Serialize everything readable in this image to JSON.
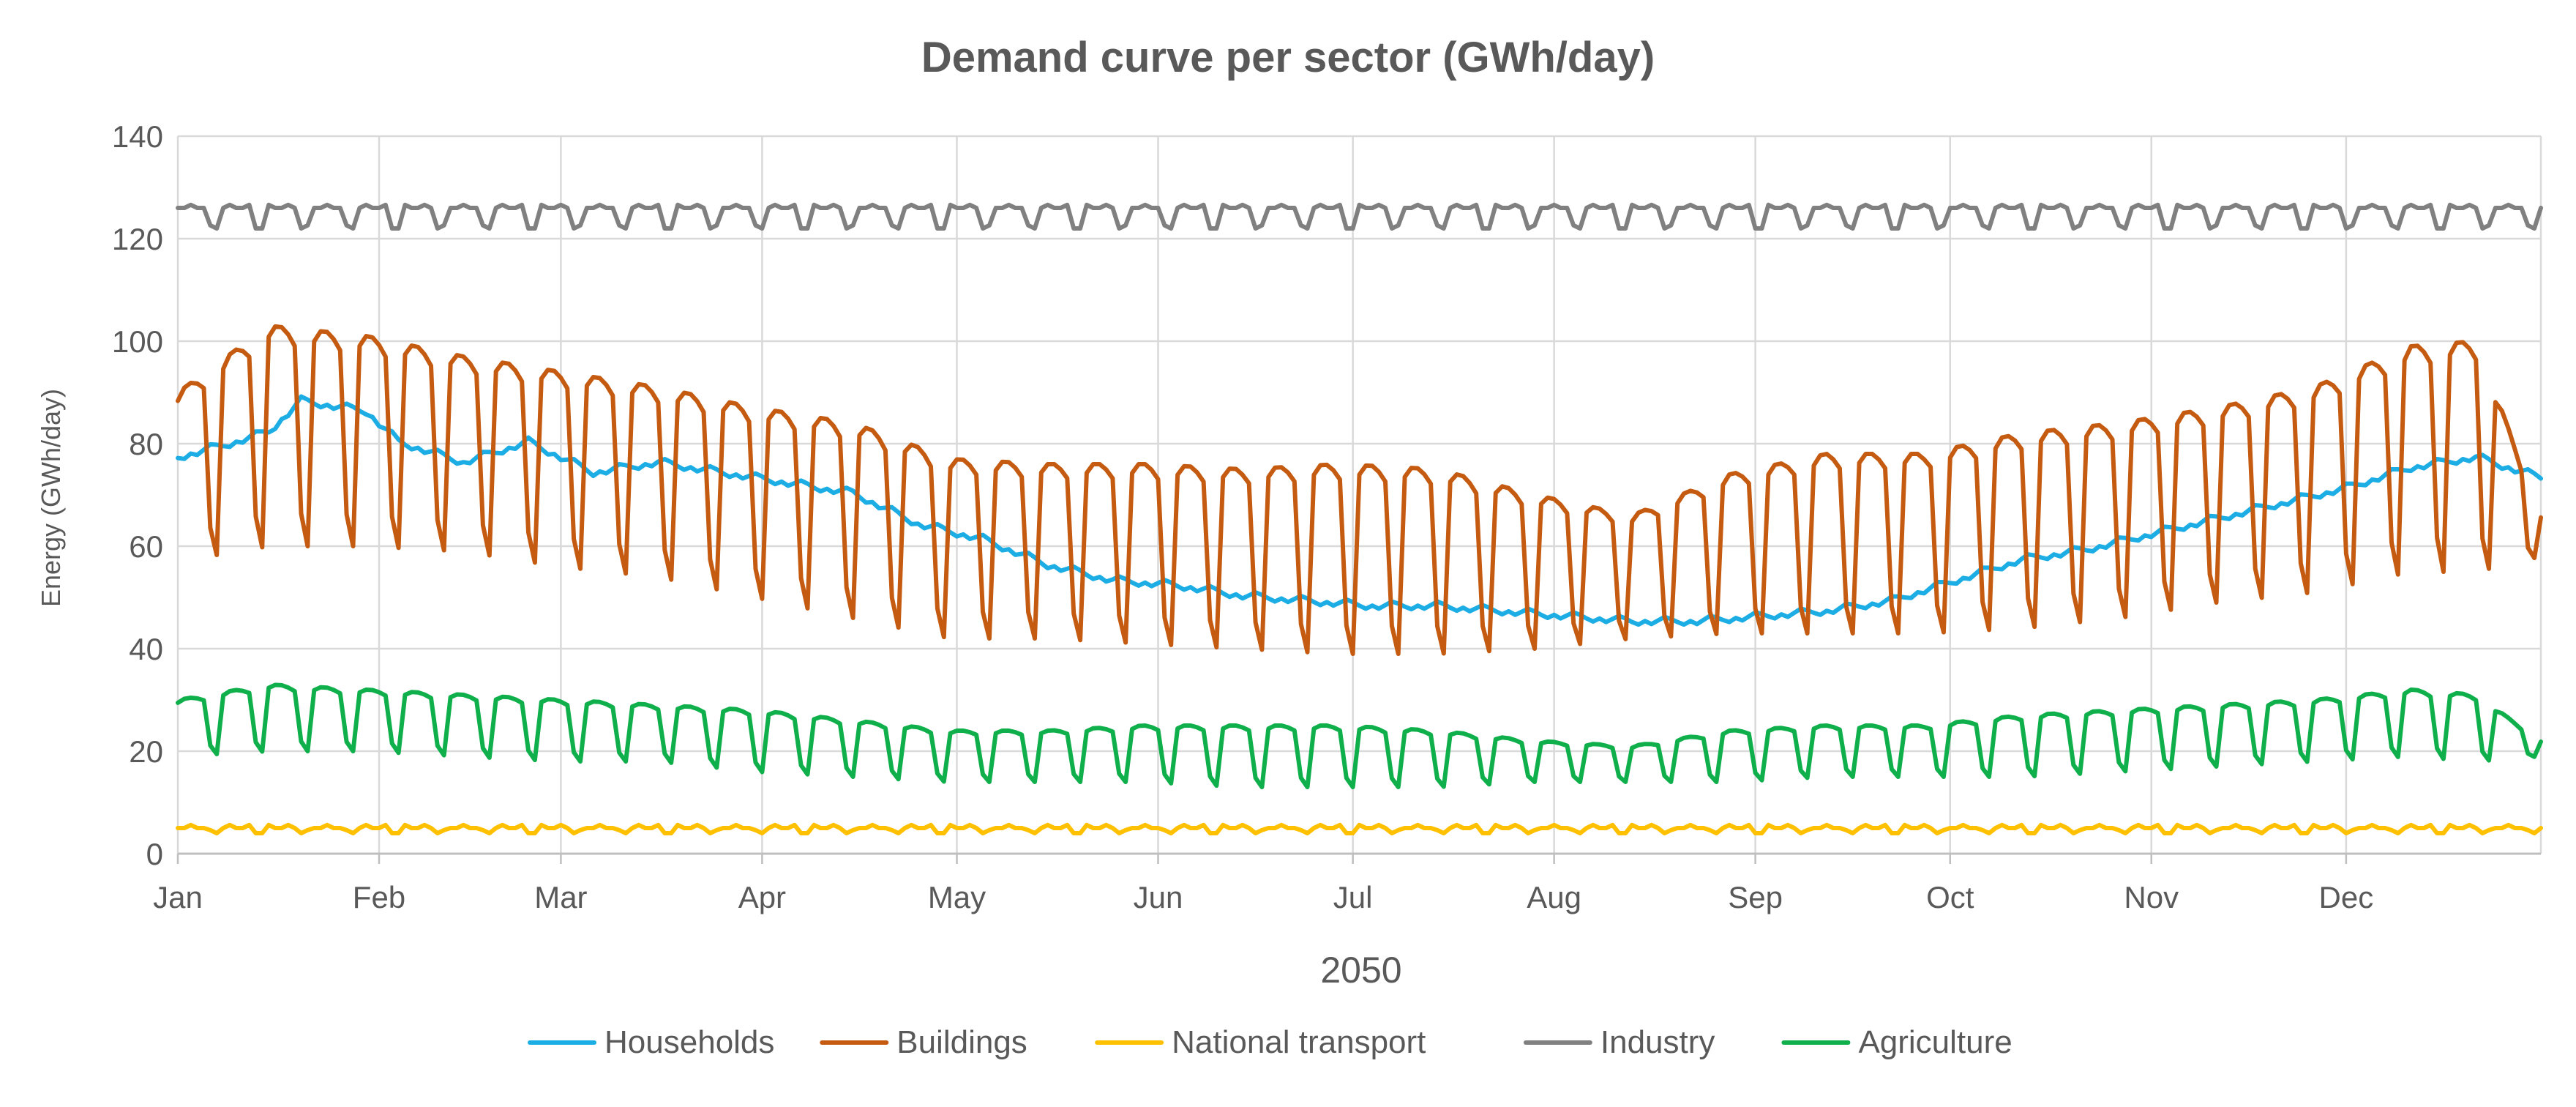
{
  "chart_data": {
    "type": "line",
    "title": "Demand curve per sector (GWh/day)",
    "xlabel": "2050",
    "ylabel": "Energy (GWh/day)",
    "ylim": [
      0,
      140
    ],
    "yticks": [
      0,
      20,
      40,
      60,
      80,
      100,
      120,
      140
    ],
    "x_tick_labels": [
      "Jan",
      "Feb",
      "Mar",
      "Apr",
      "May",
      "Jun",
      "Jul",
      "Aug",
      "Sep",
      "Oct",
      "Nov",
      "Dec"
    ],
    "x_tick_days": [
      1,
      32,
      60,
      91,
      121,
      152,
      182,
      213,
      244,
      274,
      305,
      335
    ],
    "days_in_year": 365,
    "grid": true,
    "legend_position": "bottom",
    "series": [
      {
        "name": "Households",
        "color": "#1CADE4",
        "pattern": "seasonal",
        "days": [
          1,
          10,
          15,
          20,
          30,
          35,
          45,
          55,
          65,
          75,
          85,
          95,
          105,
          115,
          125,
          135,
          145,
          155,
          165,
          175,
          185,
          195,
          205,
          215,
          225,
          235,
          245,
          255,
          265,
          275,
          285,
          295,
          305,
          315,
          325,
          335,
          345,
          355,
          365
        ],
        "values": [
          77,
          80,
          82,
          88,
          86,
          80,
          76,
          80,
          74,
          76,
          74,
          72,
          70,
          64,
          61,
          56,
          53,
          52,
          50,
          49,
          48,
          48,
          47,
          46,
          45,
          45,
          46,
          47,
          49,
          53,
          57,
          59,
          62,
          65,
          68,
          71,
          75,
          77,
          73
        ]
      },
      {
        "name": "Buildings",
        "color": "#C55A11",
        "pattern": "weekly",
        "days": [
          1,
          15,
          30,
          45,
          60,
          75,
          90,
          105,
          120,
          135,
          150,
          165,
          180,
          195,
          210,
          225,
          240,
          255,
          270,
          285,
          300,
          315,
          330,
          345,
          355,
          365
        ],
        "high": [
          90,
          103,
          101,
          97,
          94,
          91,
          87,
          84,
          77,
          76,
          76,
          75,
          76,
          75,
          70,
          66,
          74,
          78,
          78,
          82,
          84,
          87,
          91,
          99,
          100,
          66
        ],
        "low": [
          57,
          60,
          60,
          59,
          56,
          54,
          50,
          46,
          42,
          42,
          41,
          40,
          39,
          39,
          40,
          42,
          43,
          43,
          43,
          44,
          46,
          49,
          51,
          55,
          55,
          58
        ]
      },
      {
        "name": "National transport",
        "color": "#FFC000",
        "pattern": "constant",
        "base": 5,
        "dip": 1
      },
      {
        "name": "Industry",
        "color": "#808080",
        "pattern": "constant",
        "base": 126,
        "dip": 4
      },
      {
        "name": "Agriculture",
        "color": "#0FAF4B",
        "pattern": "weekly",
        "days": [
          1,
          15,
          30,
          45,
          60,
          75,
          90,
          105,
          120,
          135,
          150,
          165,
          180,
          195,
          210,
          225,
          240,
          255,
          270,
          285,
          300,
          315,
          330,
          345,
          355,
          365
        ],
        "high": [
          30,
          33,
          32,
          31,
          30,
          29,
          28,
          26,
          24,
          24,
          25,
          25,
          25,
          24,
          22,
          21,
          24,
          25,
          25,
          27,
          28,
          29,
          30,
          32,
          31,
          22
        ],
        "low": [
          19,
          20,
          20,
          19,
          18,
          18,
          16,
          15,
          14,
          14,
          14,
          13,
          13,
          13,
          14,
          14,
          14,
          15,
          15,
          15,
          16,
          17,
          18,
          19,
          18,
          19
        ]
      }
    ]
  }
}
